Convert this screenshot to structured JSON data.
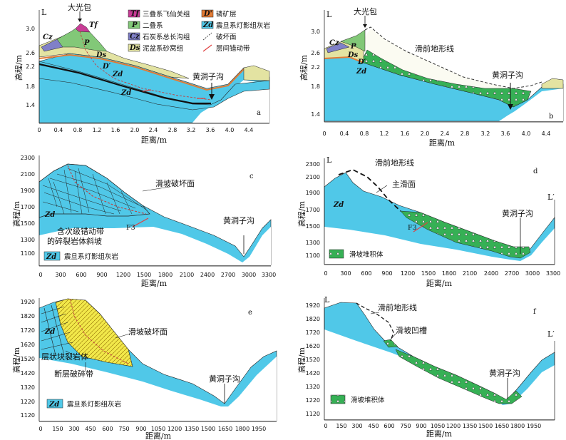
{
  "colors": {
    "zd": "#50c8e8",
    "ds": "#e3e3a2",
    "permian": "#82c878",
    "carbon": "#8080c8",
    "tf": "#c83c96",
    "phosphate": "#e27b35",
    "debris": "#36b055",
    "fault": "#e04040"
  },
  "axes": {
    "y_label": "高程/m",
    "x_label": "距离/m",
    "x_ticks_ab": [
      "0",
      "0.4",
      "0.8",
      "1.2",
      "1.6",
      "2.0",
      "2.4",
      "2.8",
      "3.2",
      "3.6",
      "4.0",
      "4.4"
    ],
    "y_ticks_ab": [
      "3.0",
      "2.6",
      "2.2",
      "1.8",
      "1.4"
    ],
    "x_ticks_cd": [
      "0",
      "300",
      "600",
      "900",
      "1200",
      "1500",
      "1800",
      "2100",
      "2400",
      "2700",
      "3000",
      "3300"
    ],
    "y_ticks_cd": [
      "2300",
      "2200",
      "2100",
      "2000",
      "1900",
      "1800",
      "1700",
      "1600",
      "1500",
      "1400",
      "1300",
      "1200",
      "1100"
    ],
    "x_ticks_ef": [
      "0",
      "150",
      "300",
      "450",
      "600",
      "750",
      "900",
      "1050",
      "1200",
      "1350",
      "1500",
      "1650",
      "1800",
      "1950"
    ],
    "y_ticks_ef": [
      "1920",
      "1820",
      "1720",
      "1620",
      "1520",
      "1420",
      "1320",
      "1220",
      "1120"
    ]
  },
  "legend_ab": [
    {
      "sym": "Tf",
      "text": "三叠系飞仙关组",
      "icon": "tf-swatch"
    },
    {
      "sym": "D'",
      "text": "磷矿层",
      "icon": "phosphate-swatch"
    },
    {
      "sym": "P",
      "text": "二叠系",
      "icon": "permian-swatch"
    },
    {
      "sym": "Zd",
      "text": "震旦系灯影组灰岩",
      "icon": "zd-swatch"
    },
    {
      "sym": "Cz",
      "text": "石炭系总长沟组",
      "icon": "carbon-swatch"
    },
    {
      "sym": "",
      "text": "破坏面",
      "icon": "failure-surface-line"
    },
    {
      "sym": "Ds",
      "text": "泥盆系砂窝组",
      "icon": "devonian-swatch"
    },
    {
      "sym": "",
      "text": "层间错动带",
      "icon": "interlayer-fault-line"
    }
  ],
  "panels": {
    "a": {
      "letter": "a",
      "peak": "大光包",
      "gully": "黄洞子沟",
      "L": "L"
    },
    "b": {
      "letter": "b",
      "peak": "大光包",
      "gully": "黄洞子沟",
      "preslide": "滑前地形线",
      "L": "L"
    },
    "c": {
      "letter": "c",
      "failure": "滑坡破坏面",
      "rockmass": "含次级错动带",
      "rockmass2": "的碎裂岩体斜坡",
      "gully": "黄洞子沟",
      "legend": "震旦系灯影组灰岩",
      "f3": "F3"
    },
    "d": {
      "letter": "d",
      "preslide": "滑前地形线",
      "main_surface": "主滑面",
      "gully": "黄洞子沟",
      "legend": "滑坡堆积体",
      "f3": "F3",
      "L": "L",
      "Lp": "L′"
    },
    "e": {
      "letter": "e",
      "failure": "滑坡破坏面",
      "layered": "层状块裂岩体",
      "fault_zone": "断层破碎带",
      "gully": "黄洞子沟",
      "legend": "震旦系灯影组灰岩"
    },
    "f": {
      "letter": "f",
      "preslide": "滑前地形线",
      "trough": "滑坡凹槽",
      "gully": "黄洞子沟",
      "legend": "滑坡堆积体",
      "L": "L",
      "Lp": "L′"
    }
  },
  "unit_labels": {
    "zd": "Zd",
    "ds": "Ds",
    "p": "P",
    "cz": "Cz",
    "tf": "Tf",
    "dprime": "D′"
  }
}
